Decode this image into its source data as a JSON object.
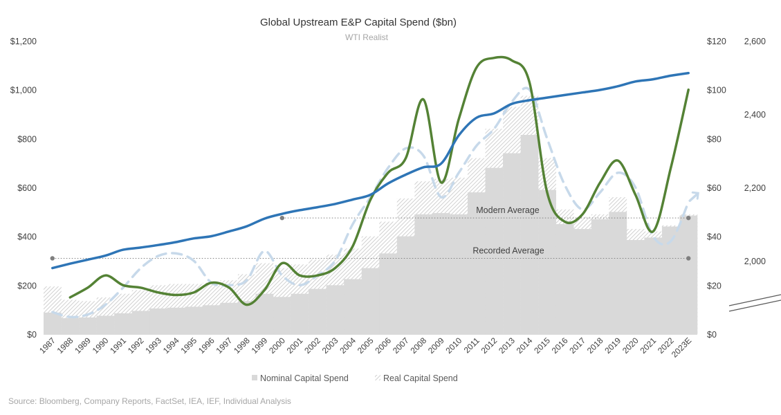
{
  "chart_data": {
    "type": "bar",
    "title": "Global Upstream E&P Capital Spend ($bn)",
    "subtitle": "WTI Realist",
    "categories": [
      "1987",
      "1988",
      "1989",
      "1990",
      "1991",
      "1992",
      "1993",
      "1994",
      "1995",
      "1996",
      "1997",
      "1998",
      "1999",
      "2000",
      "2001",
      "2002",
      "2003",
      "2004",
      "2005",
      "2006",
      "2007",
      "2008",
      "2009",
      "2010",
      "2011",
      "2012",
      "2013",
      "2014",
      "2015",
      "2016",
      "2017",
      "2018",
      "2019",
      "2020",
      "2021",
      "2022",
      "2023E"
    ],
    "left_axis": {
      "ticks": [
        "$0",
        "$200",
        "$400",
        "$600",
        "$800",
        "$1,000",
        "$1,200"
      ],
      "ylim": [
        0,
        1200
      ]
    },
    "right_axis_1": {
      "ticks": [
        "$0",
        "$20",
        "$40",
        "$60",
        "$80",
        "$100",
        "$120"
      ],
      "ylim": [
        0,
        120
      ]
    },
    "right_axis_2": {
      "ticks": [
        "2,000",
        "2,200",
        "2,400",
        "2,600"
      ],
      "ylim": [
        1800,
        2600
      ]
    },
    "series": [
      {
        "name": "Nominal Capital Spend",
        "kind": "bar",
        "axis": "left",
        "values": [
          88,
          65,
          68,
          75,
          85,
          95,
          105,
          108,
          112,
          118,
          128,
          135,
          165,
          152,
          165,
          185,
          200,
          225,
          270,
          330,
          400,
          490,
          495,
          490,
          580,
          680,
          740,
          815,
          590,
          450,
          430,
          470,
          500,
          385,
          395,
          440,
          485
        ]
      },
      {
        "name": "Real Capital Spend",
        "kind": "bar-hatched",
        "axis": "left",
        "values": [
          195,
          140,
          135,
          150,
          165,
          180,
          200,
          205,
          205,
          210,
          220,
          245,
          290,
          270,
          285,
          305,
          325,
          350,
          400,
          460,
          555,
          625,
          635,
          640,
          720,
          840,
          930,
          975,
          720,
          510,
          480,
          490,
          560,
          430,
          420,
          445,
          490
        ]
      },
      {
        "kind": "line",
        "axis": "right_axis_1",
        "color": "#548235",
        "values": [
          null,
          15,
          19,
          24,
          20,
          19,
          17,
          16,
          17,
          21,
          19,
          12,
          18,
          29,
          24,
          24,
          27,
          36,
          55,
          66,
          72,
          96,
          62,
          88,
          109,
          113,
          112,
          103,
          58,
          46,
          49,
          62,
          71,
          57,
          42,
          68,
          100
        ]
      },
      {
        "kind": "line-dashed",
        "axis": "right_axis_1",
        "color": "#c7d9ea",
        "values": [
          9,
          7,
          8,
          12,
          19,
          27,
          32,
          33,
          30,
          21,
          20,
          22,
          34,
          24,
          20,
          24,
          30,
          45,
          56,
          68,
          76,
          73,
          56,
          66,
          77,
          84,
          95,
          100,
          80,
          61,
          51,
          58,
          66,
          60,
          40,
          38,
          54
        ]
      },
      {
        "kind": "line",
        "axis": "right_axis_2",
        "color": "#2e75b6",
        "values": [
          1980,
          1992,
          2003,
          2014,
          2030,
          2036,
          2043,
          2051,
          2061,
          2067,
          2080,
          2094,
          2115,
          2128,
          2138,
          2146,
          2155,
          2167,
          2180,
          2211,
          2235,
          2255,
          2265,
          2342,
          2390,
          2402,
          2428,
          2438,
          2445,
          2452,
          2459,
          2466,
          2476,
          2489,
          2495,
          2505,
          2512
        ]
      }
    ],
    "annotations": [
      {
        "label": "Modern Average",
        "value": 475,
        "axis": "left",
        "from": "2000",
        "to": "2023E"
      },
      {
        "label": "Recorded Average",
        "value": 310,
        "axis": "left",
        "from": "1987",
        "to": "2023E"
      }
    ],
    "legend": {
      "placement": "bottom",
      "entries": [
        "Nominal Capital Spend",
        "Real Capital Spend"
      ]
    },
    "grid": false
  },
  "footer": {
    "source": "Source: Bloomberg, Company Reports, FactSet, IEA, IEF, Individual Analysis"
  },
  "colors": {
    "nominal_bar": "#d9d9d9",
    "real_hatch": "#cfcfcf",
    "average_line": "#7f7f7f",
    "wti_line": "#548235",
    "dashed_line": "#c7d9ea",
    "blue_line": "#2e75b6"
  }
}
